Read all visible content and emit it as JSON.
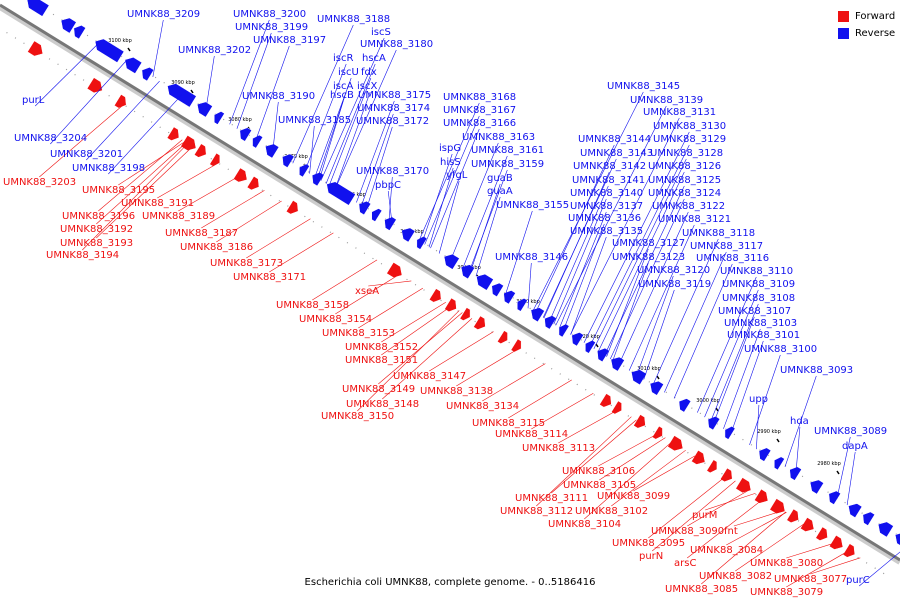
{
  "caption": "Escherichia coli UMNK88, complete genome. - 0..5186416",
  "legend": {
    "forward_label": "Forward",
    "reverse_label": "Reverse",
    "forward_color": "#ee1111",
    "reverse_color": "#1111ee"
  },
  "ticks": [
    "3100 kbp",
    "3090 kbp",
    "3080 kbp",
    "3070 kbp",
    "3060 kbp",
    "3050 kbp",
    "3040 kbp",
    "3030 kbp",
    "3020 kbp",
    "3010 kbp",
    "3000 kbp",
    "2990 kbp",
    "2980 kbp"
  ],
  "reverse_labels": [
    "UMNK88_3209",
    "UMNK88_3200",
    "UMNK88_3199",
    "UMNK88_3188",
    "UMNK88_3197",
    "iscS",
    "UMNK88_3202",
    "UMNK88_3180",
    "iscR",
    "hscA",
    "iscU",
    "fdx",
    "iscA",
    "iscX",
    "hscB",
    "UMNK88_3175",
    "UMNK88_3190",
    "UMNK88_3174",
    "UMNK88_3185",
    "UMNK88_3172",
    "UMNK88_3168",
    "UMNK88_3167",
    "UMNK88_3166",
    "UMNK88_3163",
    "ispG",
    "UMNK88_3161",
    "hisS",
    "UMNK88_3159",
    "UMNK88_3170",
    "yfgL",
    "pbpC",
    "guaB",
    "guaA",
    "UMNK88_3155",
    "purL",
    "UMNK88_3204",
    "UMNK88_3201",
    "UMNK88_3198",
    "UMNK88_3146",
    "UMNK88_3145",
    "UMNK88_3139",
    "UMNK88_3131",
    "UMNK88_3130",
    "UMNK88_3144",
    "UMNK88_3129",
    "UMNK88_3143",
    "UMNK88_3128",
    "UMNK88_3142",
    "UMNK88_3126",
    "UMNK88_3141",
    "UMNK88_3125",
    "UMNK88_3140",
    "UMNK88_3124",
    "UMNK88_3137",
    "UMNK88_3122",
    "UMNK88_3136",
    "UMNK88_3121",
    "UMNK88_3135",
    "UMNK88_3118",
    "UMNK88_3127",
    "UMNK88_3117",
    "UMNK88_3123",
    "UMNK88_3116",
    "UMNK88_3120",
    "UMNK88_3110",
    "UMNK88_3119",
    "UMNK88_3109",
    "UMNK88_3108",
    "UMNK88_3107",
    "UMNK88_3103",
    "UMNK88_3101",
    "UMNK88_3100",
    "UMNK88_3093",
    "upp",
    "hda",
    "UMNK88_3089",
    "dapA",
    "purC"
  ],
  "forward_labels": [
    "UMNK88_3203",
    "UMNK88_3195",
    "UMNK88_3191",
    "UMNK88_3196",
    "UMNK88_3189",
    "UMNK88_3192",
    "UMNK88_3187",
    "UMNK88_3193",
    "UMNK88_3186",
    "UMNK88_3194",
    "UMNK88_3173",
    "UMNK88_3171",
    "xseA",
    "UMNK88_3158",
    "UMNK88_3154",
    "UMNK88_3153",
    "UMNK88_3152",
    "UMNK88_3151",
    "UMNK88_3147",
    "UMNK88_3149",
    "UMNK88_3138",
    "UMNK88_3148",
    "UMNK88_3134",
    "UMNK88_3150",
    "UMNK88_3115",
    "UMNK88_3114",
    "UMNK88_3113",
    "UMNK88_3106",
    "UMNK88_3105",
    "UMNK88_3111",
    "UMNK88_3099",
    "UMNK88_3112",
    "UMNK88_3102",
    "UMNK88_3104",
    "purM",
    "UMNK88_3090",
    "fnt",
    "UMNK88_3095",
    "purN",
    "UMNK88_3084",
    "arsC",
    "UMNK88_3080",
    "UMNK88_3082",
    "UMNK88_3077",
    "UMNK88_3085",
    "UMNK88_3079"
  ]
}
